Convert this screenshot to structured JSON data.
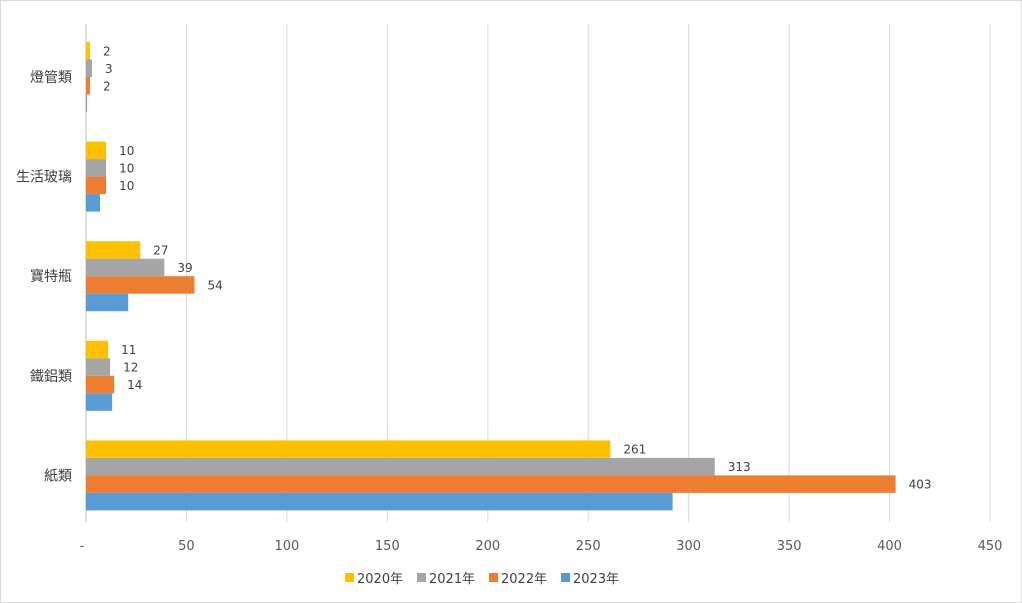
{
  "chart_data": {
    "type": "bar",
    "orientation": "horizontal",
    "categories": [
      "燈管類",
      "生活玻璃",
      "寶特瓶",
      "鐵鋁類",
      "紙類"
    ],
    "series": [
      {
        "name": "2020年",
        "color": "#FFC000",
        "values": [
          2,
          10,
          27,
          11,
          261
        ],
        "labels": [
          "2",
          "10",
          "27",
          "11",
          "261"
        ]
      },
      {
        "name": "2021年",
        "color": "#A5A5A5",
        "values": [
          3,
          10,
          39,
          12,
          313
        ],
        "labels": [
          "3",
          "10",
          "39",
          "12",
          "313"
        ]
      },
      {
        "name": "2022年",
        "color": "#ED7D31",
        "values": [
          2,
          10,
          54,
          14,
          403
        ],
        "labels": [
          "2",
          "10",
          "54",
          "14",
          "403"
        ]
      },
      {
        "name": "2023年",
        "color": "#5B9BD5",
        "values": [
          0.5,
          7,
          21,
          13,
          292
        ],
        "labels": []
      }
    ],
    "xlim": [
      0,
      450
    ],
    "xticks": [
      "-",
      "50",
      "100",
      "150",
      "200",
      "250",
      "300",
      "350",
      "400",
      "450"
    ],
    "grid": true,
    "legend_position": "bottom"
  }
}
